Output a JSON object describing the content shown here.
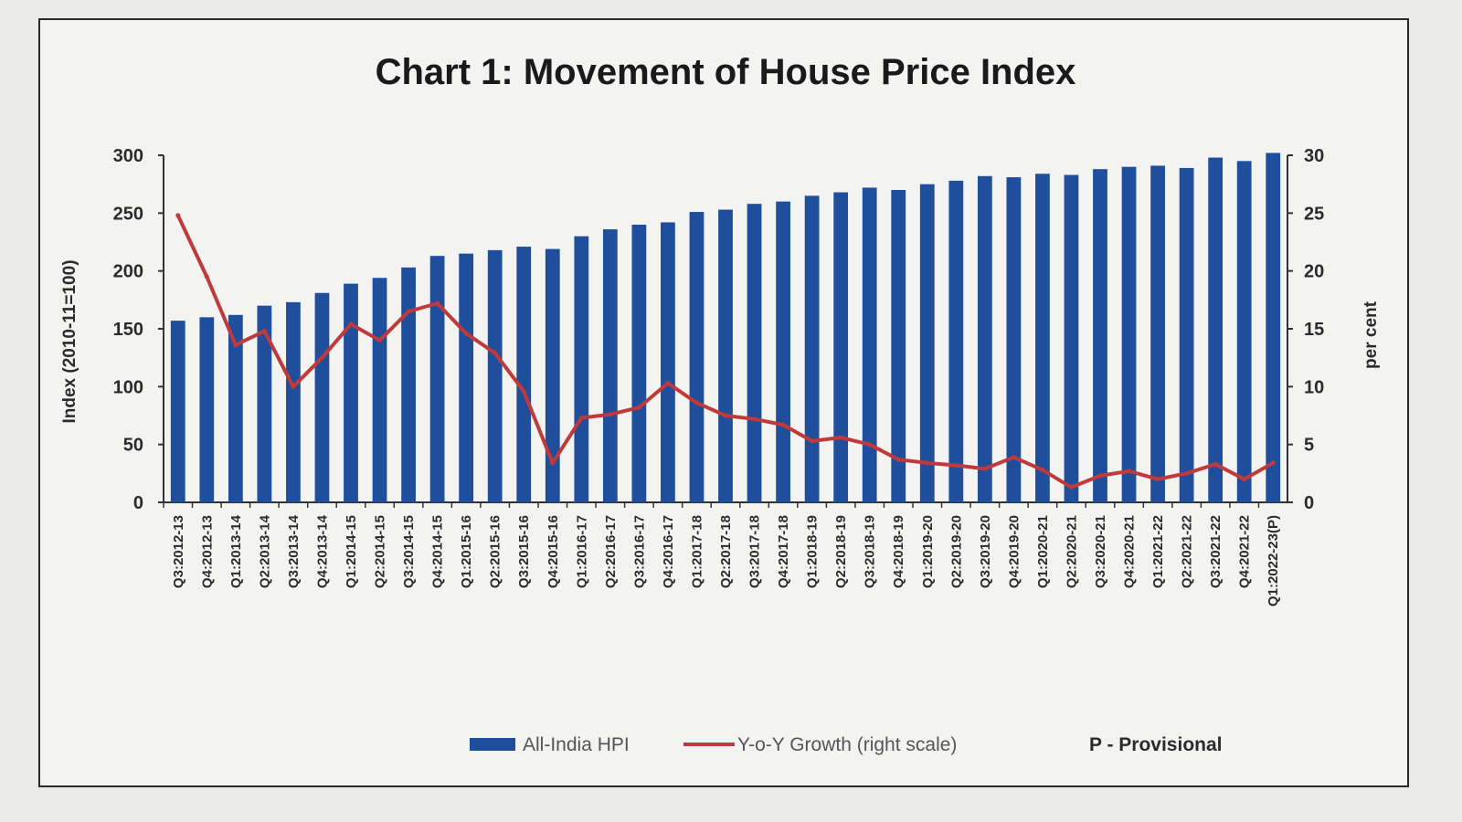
{
  "chart_data": {
    "type": "bar",
    "title": "Chart 1: Movement of House Price Index",
    "ylabel": "Index (2010-11=100)",
    "y2label": "per cent",
    "ylim": [
      0,
      300
    ],
    "y2lim": [
      0,
      30
    ],
    "yticks": [
      "0",
      "50",
      "100",
      "150",
      "200",
      "250",
      "300"
    ],
    "y2ticks": [
      "0",
      "5",
      "10",
      "15",
      "20",
      "25",
      "30"
    ],
    "categories": [
      "Q3:2012-13",
      "Q4:2012-13",
      "Q1:2013-14",
      "Q2:2013-14",
      "Q3:2013-14",
      "Q4:2013-14",
      "Q1:2014-15",
      "Q2:2014-15",
      "Q3:2014-15",
      "Q4:2014-15",
      "Q1:2015-16",
      "Q2:2015-16",
      "Q3:2015-16",
      "Q4:2015-16",
      "Q1:2016-17",
      "Q2:2016-17",
      "Q3:2016-17",
      "Q4:2016-17",
      "Q1:2017-18",
      "Q2:2017-18",
      "Q3:2017-18",
      "Q4:2017-18",
      "Q1:2018-19",
      "Q2:2018-19",
      "Q3:2018-19",
      "Q4:2018-19",
      "Q1:2019-20",
      "Q2:2019-20",
      "Q3:2019-20",
      "Q4:2019-20",
      "Q1:2020-21",
      "Q2:2020-21",
      "Q3:2020-21",
      "Q4:2020-21",
      "Q1:2021-22",
      "Q2:2021-22",
      "Q3:2021-22",
      "Q4:2021-22",
      "Q1:2022-23(P)"
    ],
    "series": [
      {
        "name": "All-India HPI",
        "type": "bar",
        "axis": "left",
        "color": "#1f4e9c",
        "values": [
          157,
          160,
          162,
          170,
          173,
          181,
          189,
          194,
          203,
          213,
          215,
          218,
          221,
          219,
          230,
          236,
          240,
          242,
          251,
          253,
          258,
          260,
          265,
          268,
          272,
          270,
          275,
          278,
          282,
          281,
          284,
          283,
          288,
          290,
          291,
          289,
          298,
          295,
          302
        ]
      },
      {
        "name": "Y-o-Y Growth (right scale)",
        "type": "line",
        "axis": "right",
        "color": "#c0393b",
        "values": [
          24.8,
          19.5,
          13.6,
          14.8,
          10.0,
          12.5,
          15.4,
          14.0,
          16.5,
          17.2,
          14.6,
          12.9,
          9.6,
          3.4,
          7.3,
          7.6,
          8.2,
          10.3,
          8.6,
          7.5,
          7.2,
          6.7,
          5.3,
          5.6,
          5.0,
          3.7,
          3.4,
          3.2,
          2.9,
          3.9,
          2.8,
          1.3,
          2.3,
          2.7,
          2.0,
          2.5,
          3.3,
          2.0,
          3.4
        ]
      }
    ],
    "legend": {
      "position": "bottom",
      "items": [
        {
          "label": "All-India HPI",
          "swatch": "bar",
          "color": "#1f4e9c"
        },
        {
          "label": "Y-o-Y Growth (right scale)",
          "swatch": "line",
          "color": "#c0393b"
        }
      ],
      "note": "P - Provisional"
    }
  }
}
